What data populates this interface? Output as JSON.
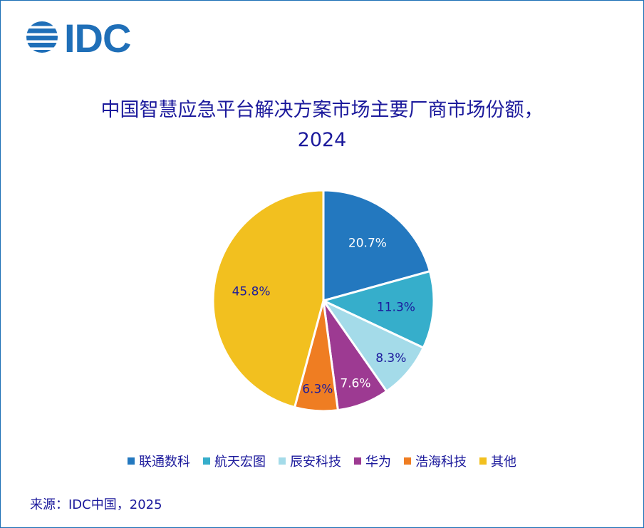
{
  "logo": {
    "text": "IDC",
    "color": "#1f6fb8"
  },
  "title_lines": [
    "中国智慧应急平台解决方案市场主要厂商市场份额，",
    "2024"
  ],
  "source": "来源：IDC中国，2025",
  "chart_data": {
    "type": "pie",
    "title": "中国智慧应急平台解决方案市场主要厂商市场份额，2024",
    "start_angle_deg": 0,
    "direction": "clockwise",
    "legend_position": "bottom",
    "slices": [
      {
        "label": "联通数科",
        "value": 20.7,
        "display": "20.7%",
        "color": "#2378bf",
        "label_color": "#ffffff"
      },
      {
        "label": "航天宏图",
        "value": 11.3,
        "display": "11.3%",
        "color": "#36aecb",
        "label_color": "#1c1a9c"
      },
      {
        "label": "辰安科技",
        "value": 8.3,
        "display": "8.3%",
        "color": "#a4dbe9",
        "label_color": "#1c1a9c"
      },
      {
        "label": "华为",
        "value": 7.6,
        "display": "7.6%",
        "color": "#9d3a92",
        "label_color": "#ffffff"
      },
      {
        "label": "浩海科技",
        "value": 6.3,
        "display": "6.3%",
        "color": "#ef7d22",
        "label_color": "#1c1a9c"
      },
      {
        "label": "其他",
        "value": 45.8,
        "display": "45.8%",
        "color": "#f2c01f",
        "label_color": "#1c1a9c"
      }
    ]
  }
}
